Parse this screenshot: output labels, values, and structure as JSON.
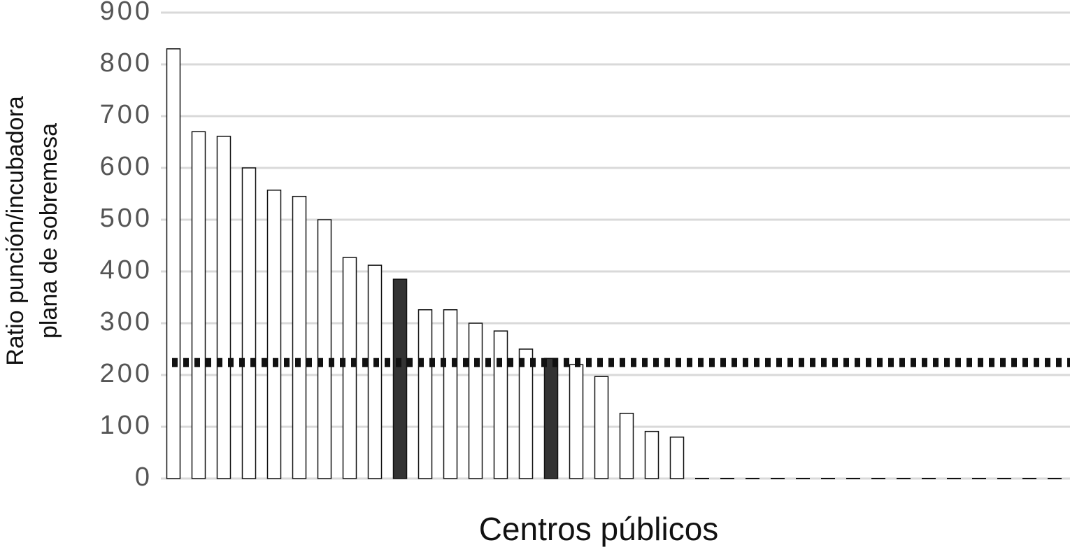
{
  "chart_data": {
    "type": "bar",
    "xlabel": "Centros públicos",
    "ylabel": [
      "Ratio punción/incubadora",
      "plana de sobremesa"
    ],
    "categories": [
      null,
      null,
      null,
      null,
      null,
      null,
      null,
      null,
      null,
      null,
      null,
      null,
      null,
      null,
      null,
      null,
      null,
      null,
      null,
      null,
      null,
      null,
      null,
      null,
      null,
      null,
      null,
      null,
      null,
      null,
      null,
      null,
      null,
      null,
      null,
      null
    ],
    "values": [
      830,
      670,
      661,
      600,
      557,
      545,
      500,
      427,
      412,
      385,
      326,
      326,
      300,
      285,
      250,
      232,
      220,
      197,
      126,
      91,
      80,
      0,
      0,
      0,
      0,
      0,
      0,
      0,
      0,
      0,
      0,
      0,
      0,
      0,
      0,
      0
    ],
    "colors": [
      "#ffffff",
      "#ffffff",
      "#ffffff",
      "#ffffff",
      "#ffffff",
      "#ffffff",
      "#ffffff",
      "#ffffff",
      "#ffffff",
      "#333333",
      "#ffffff",
      "#ffffff",
      "#ffffff",
      "#ffffff",
      "#ffffff",
      "#333333",
      "#ffffff",
      "#ffffff",
      "#ffffff",
      "#ffffff",
      "#ffffff",
      "#ffffff",
      "#ffffff",
      "#ffffff",
      "#ffffff",
      "#ffffff",
      "#ffffff",
      "#ffffff",
      "#ffffff",
      "#ffffff",
      "#ffffff",
      "#ffffff",
      "#ffffff",
      "#ffffff",
      "#ffffff",
      "#ffffff"
    ],
    "reference_line": 224,
    "ylim": [
      0,
      900
    ],
    "yticks": [
      0,
      100,
      200,
      300,
      400,
      500,
      600,
      700,
      800,
      900
    ],
    "grid": true
  }
}
